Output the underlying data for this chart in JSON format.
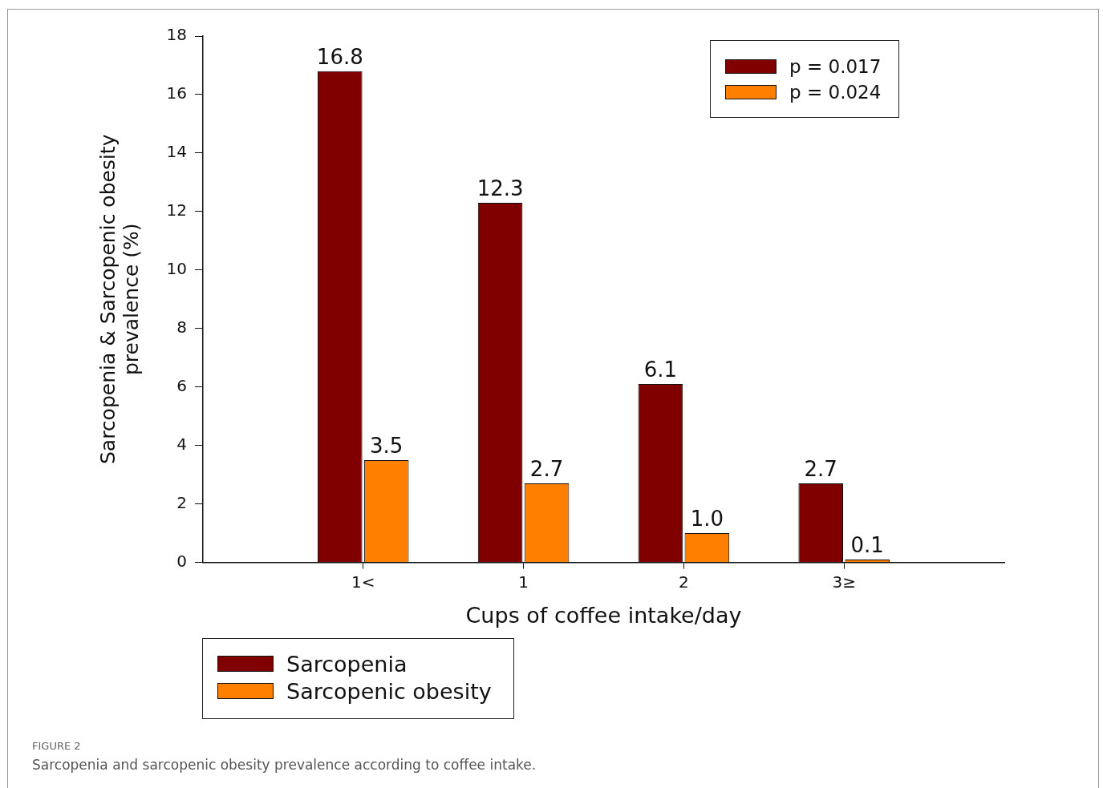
{
  "chart_data": {
    "type": "bar",
    "xlabel": "Cups of coffee intake/day",
    "ylabel": "Sarcopenia & Sarcopenic obesity\nprevalence (%)",
    "categories": [
      "1<",
      "1",
      "2",
      "3≥"
    ],
    "series": [
      {
        "name": "Sarcopenia",
        "color": "#800000",
        "values": [
          16.8,
          12.3,
          6.1,
          2.7
        ]
      },
      {
        "name": "Sarcopenic obesity",
        "color": "#ff8000",
        "values": [
          3.5,
          2.7,
          1.0,
          0.1
        ]
      }
    ],
    "value_labels": [
      [
        "16.8",
        "12.3",
        "6.1",
        "2.7"
      ],
      [
        "3.5",
        "2.7",
        "1.0",
        "0.1"
      ]
    ],
    "ylim": [
      0,
      18
    ],
    "yticks": [
      0,
      2,
      4,
      6,
      8,
      10,
      12,
      14,
      16,
      18
    ],
    "grid": false,
    "legend": "bottom left",
    "annotations": [
      "p = 0.017",
      "p = 0.024",
      "FIGURE 2",
      "Sarcopenia and sarcopenic obesity prevalence according to coffee intake."
    ]
  }
}
